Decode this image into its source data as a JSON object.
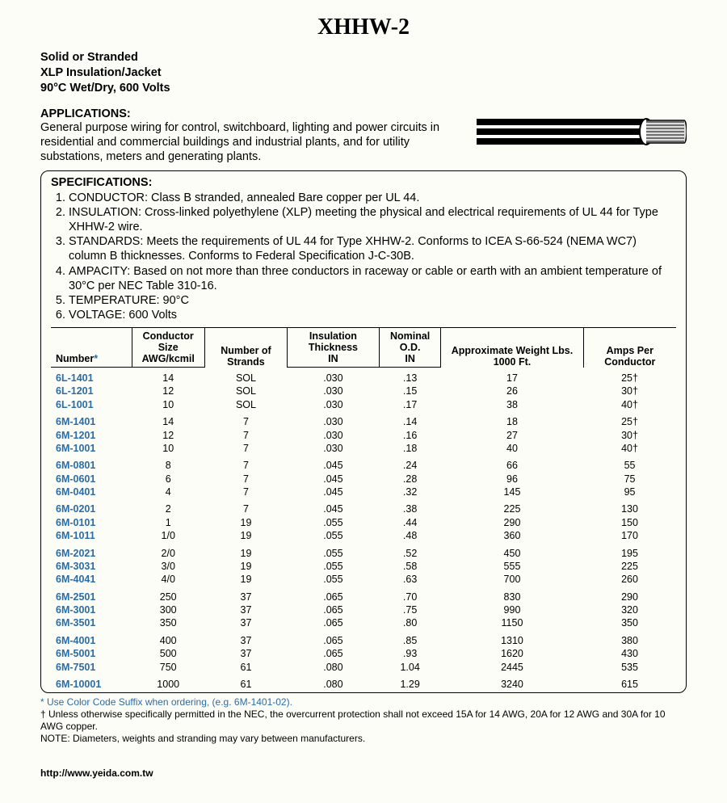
{
  "title": "XHHW-2",
  "subtitle_lines": [
    "Solid or Stranded",
    "XLP Insulation/Jacket",
    "90°C Wet/Dry, 600 Volts"
  ],
  "applications": {
    "heading": "APPLICATIONS:",
    "body": "General purpose wiring for control, switchboard, lighting and power circuits in residential and commercial buildings and industrial plants, and for utility substations, meters and generating plants."
  },
  "specifications": {
    "heading": "SPECIFICATIONS:",
    "items": [
      "CONDUCTOR: Class B stranded, annealed Bare copper per UL 44.",
      "INSULATION: Cross-linked polyethylene (XLP) meeting the physical and electrical requirements of UL 44 for Type XHHW-2 wire.",
      "STANDARDS: Meets the requirements of UL 44 for Type XHHW-2. Conforms to ICEA S-66-524 (NEMA WC7) column B thicknesses. Conforms to Federal Specification J-C-30B.",
      "AMPACITY: Based on not more than three conductors in raceway or cable or earth with an ambient temperature of 30°C per NEC Table 310-16.",
      "TEMPERATURE: 90°C",
      "VOLTAGE: 600 Volts"
    ]
  },
  "table": {
    "head": {
      "c0a": "Number",
      "c0star": "*",
      "c1a": "Conductor Size",
      "c1b": "AWG/kcmil",
      "c2a": "Number of Strands",
      "c3a": "Insulation Thickness",
      "c3b": "IN",
      "c4a": "Nominal O.D.",
      "c4b": "IN",
      "c5a": "Approximate Weight Lbs. 1000 Ft.",
      "c6a": "Amps Per Conductor"
    },
    "groups": [
      [
        [
          "6L-1401",
          "14",
          "SOL",
          ".030",
          ".13",
          "17",
          "25†"
        ],
        [
          "6L-1201",
          "12",
          "SOL",
          ".030",
          ".15",
          "26",
          "30†"
        ],
        [
          "6L-1001",
          "10",
          "SOL",
          ".030",
          ".17",
          "38",
          "40†"
        ]
      ],
      [
        [
          "6M-1401",
          "14",
          "7",
          ".030",
          ".14",
          "18",
          "25†"
        ],
        [
          "6M-1201",
          "12",
          "7",
          ".030",
          ".16",
          "27",
          "30†"
        ],
        [
          "6M-1001",
          "10",
          "7",
          ".030",
          ".18",
          "40",
          "40†"
        ]
      ],
      [
        [
          "6M-0801",
          "8",
          "7",
          ".045",
          ".24",
          "66",
          "55"
        ],
        [
          "6M-0601",
          "6",
          "7",
          ".045",
          ".28",
          "96",
          "75"
        ],
        [
          "6M-0401",
          "4",
          "7",
          ".045",
          ".32",
          "145",
          "95"
        ]
      ],
      [
        [
          "6M-0201",
          "2",
          "7",
          ".045",
          ".38",
          "225",
          "130"
        ],
        [
          "6M-0101",
          "1",
          "19",
          ".055",
          ".44",
          "290",
          "150"
        ],
        [
          "6M-1011",
          "1/0",
          "19",
          ".055",
          ".48",
          "360",
          "170"
        ]
      ],
      [
        [
          "6M-2021",
          "2/0",
          "19",
          ".055",
          ".52",
          "450",
          "195"
        ],
        [
          "6M-3031",
          "3/0",
          "19",
          ".055",
          ".58",
          "555",
          "225"
        ],
        [
          "6M-4041",
          "4/0",
          "19",
          ".055",
          ".63",
          "700",
          "260"
        ]
      ],
      [
        [
          "6M-2501",
          "250",
          "37",
          ".065",
          ".70",
          "830",
          "290"
        ],
        [
          "6M-3001",
          "300",
          "37",
          ".065",
          ".75",
          "990",
          "320"
        ],
        [
          "6M-3501",
          "350",
          "37",
          ".065",
          ".80",
          "1150",
          "350"
        ]
      ],
      [
        [
          "6M-4001",
          "400",
          "37",
          ".065",
          ".85",
          "1310",
          "380"
        ],
        [
          "6M-5001",
          "500",
          "37",
          ".065",
          ".93",
          "1620",
          "430"
        ],
        [
          "6M-7501",
          "750",
          "61",
          ".080",
          "1.04",
          "2445",
          "535"
        ]
      ],
      [
        [
          "6M-10001",
          "1000",
          "61",
          ".080",
          "1.29",
          "3240",
          "615"
        ]
      ]
    ]
  },
  "footnotes": {
    "star": "* Use Color Code Suffix when ordering, (e.g. 6M-1401-02).",
    "dagger": "† Unless otherwise specifically permitted in the NEC, the overcurrent protection shall not exceed 15A for 14 AWG, 20A for 12 AWG and 30A for 10 AWG copper.",
    "note": "NOTE: Diameters, weights and stranding may vary between manufacturers."
  },
  "url": "http://www.yeida.com.tw",
  "colors": {
    "link_blue": "#2a6ca6",
    "background": "#fdfdf7",
    "border": "#000000"
  }
}
